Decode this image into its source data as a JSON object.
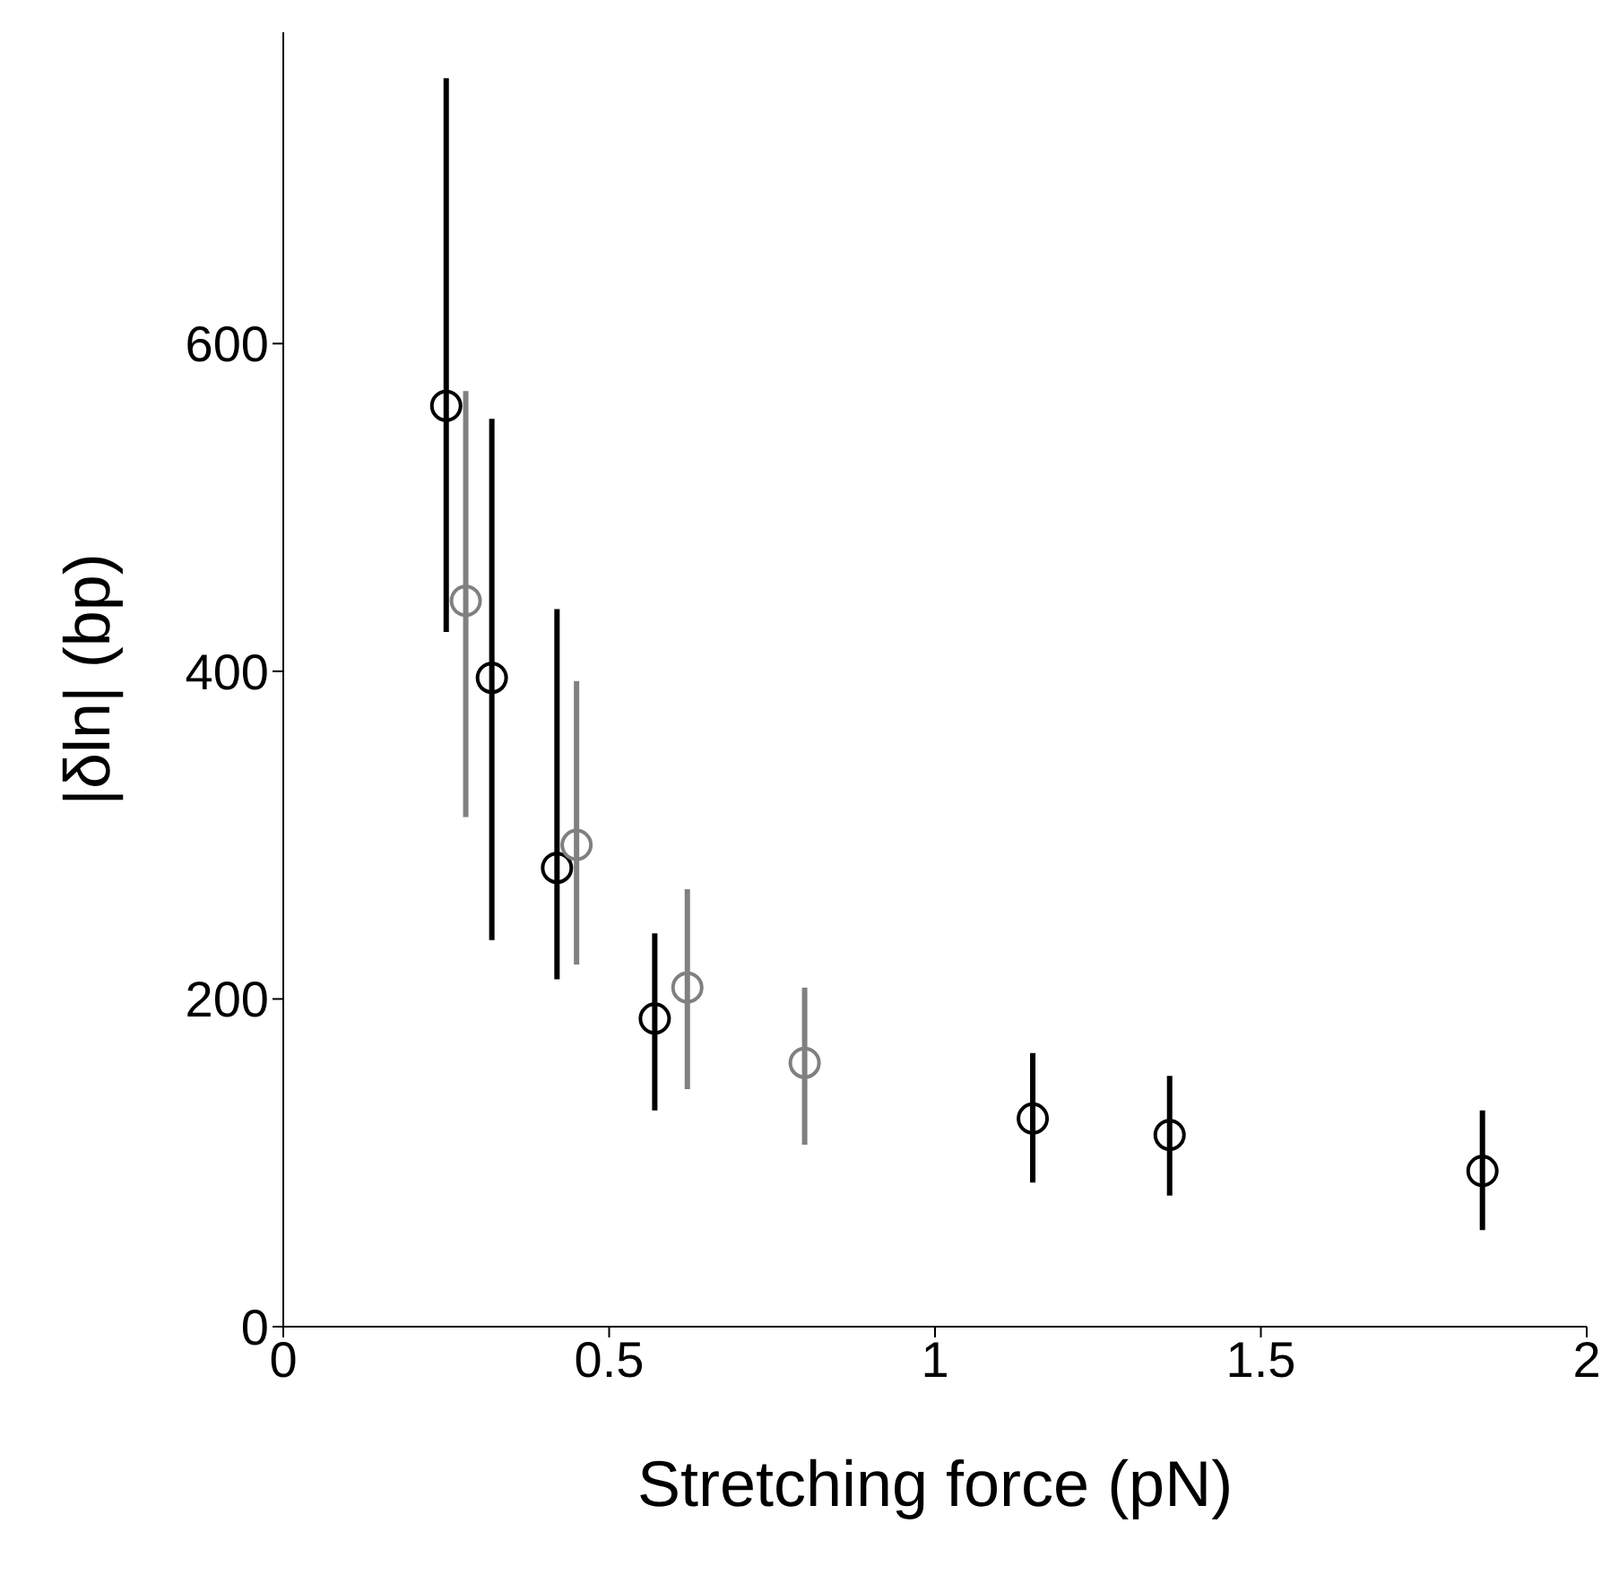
{
  "chart_data": {
    "type": "scatter",
    "xlabel": "Stretching force (pN)",
    "ylabel": "|δln| (bp)",
    "series": [
      {
        "color": "#000000",
        "x": [
          0.25,
          0.32,
          0.42,
          0.57,
          1.15,
          1.36,
          1.84
        ],
        "values": [
          562,
          396,
          280,
          188,
          127,
          117,
          95
        ],
        "errors": [
          [
            424,
            762
          ],
          [
            236,
            554
          ],
          [
            212,
            438
          ],
          [
            132,
            240
          ],
          [
            88,
            167
          ],
          [
            80,
            153
          ],
          [
            59,
            132
          ]
        ]
      },
      {
        "color": "#808080",
        "x": [
          0.28,
          0.45,
          0.62,
          0.8
        ],
        "values": [
          443,
          294,
          207,
          161
        ],
        "errors": [
          [
            311,
            571
          ],
          [
            221,
            394
          ],
          [
            145,
            267
          ],
          [
            111,
            207
          ]
        ]
      }
    ],
    "marker": "circle",
    "xlim": [
      0,
      2
    ],
    "xticks": [
      0,
      0.5,
      1,
      1.5,
      2
    ],
    "ylim": [
      0,
      790
    ],
    "yticks": [
      0,
      200,
      400,
      600
    ]
  }
}
